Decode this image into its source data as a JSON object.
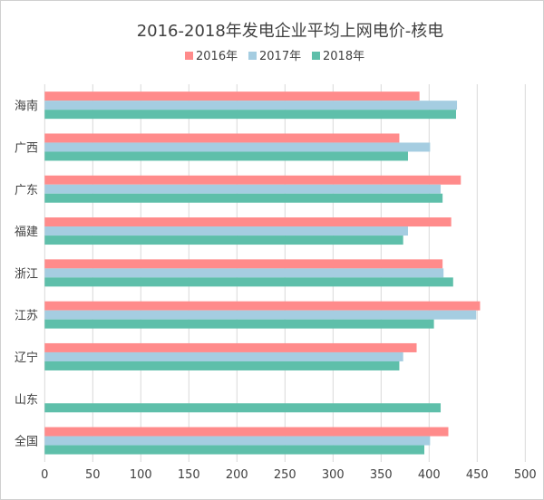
{
  "chart_data": {
    "type": "bar",
    "orientation": "horizontal",
    "title": "2016-2018年发电企业平均上网电价-核电",
    "categories": [
      "海南",
      "广西",
      "广东",
      "福建",
      "浙江",
      "江苏",
      "辽宁",
      "山东",
      "全国"
    ],
    "series": [
      {
        "name": "2016年",
        "color": "#ff8b8b",
        "values": [
          390,
          369,
          433,
          423,
          414,
          453,
          387,
          null,
          420
        ]
      },
      {
        "name": "2017年",
        "color": "#a5cde1",
        "values": [
          429,
          401,
          412,
          378,
          415,
          449,
          373,
          null,
          401
        ]
      },
      {
        "name": "2018年",
        "color": "#5ebfaa",
        "values": [
          428,
          378,
          414,
          373,
          425,
          405,
          369,
          412,
          395
        ]
      }
    ],
    "xlim": [
      0,
      500
    ],
    "xticks": [
      0,
      50,
      100,
      150,
      200,
      250,
      300,
      350,
      400,
      450,
      500
    ],
    "grid": true,
    "legend_position": "top"
  }
}
